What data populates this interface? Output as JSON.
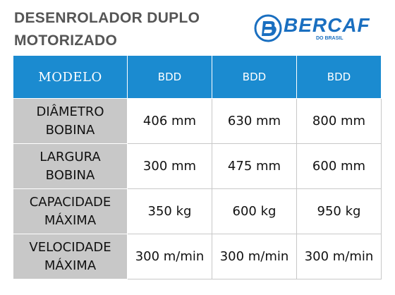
{
  "header": {
    "title_lines": [
      "DESENROLADOR DUPLO",
      "MOTORIZADO"
    ],
    "logo": {
      "brand": "BERCAF",
      "tagline": "DO BRASIL"
    }
  },
  "table": {
    "columns": [
      "MODELO",
      "BDD",
      "BDD",
      "BDD"
    ],
    "rows": [
      [
        "DIÂMETRO BOBINA",
        "406 mm",
        "630 mm",
        "800 mm"
      ],
      [
        "LARGURA BOBINA",
        "300 mm",
        "475 mm",
        "600 mm"
      ],
      [
        "CAPACIDADE MÁXIMA",
        "350 kg",
        "600 kg",
        "950 kg"
      ],
      [
        "VELOCIDADE MÁXIMA",
        "300 m/min",
        "300 m/min",
        "300 m/min"
      ]
    ]
  }
}
